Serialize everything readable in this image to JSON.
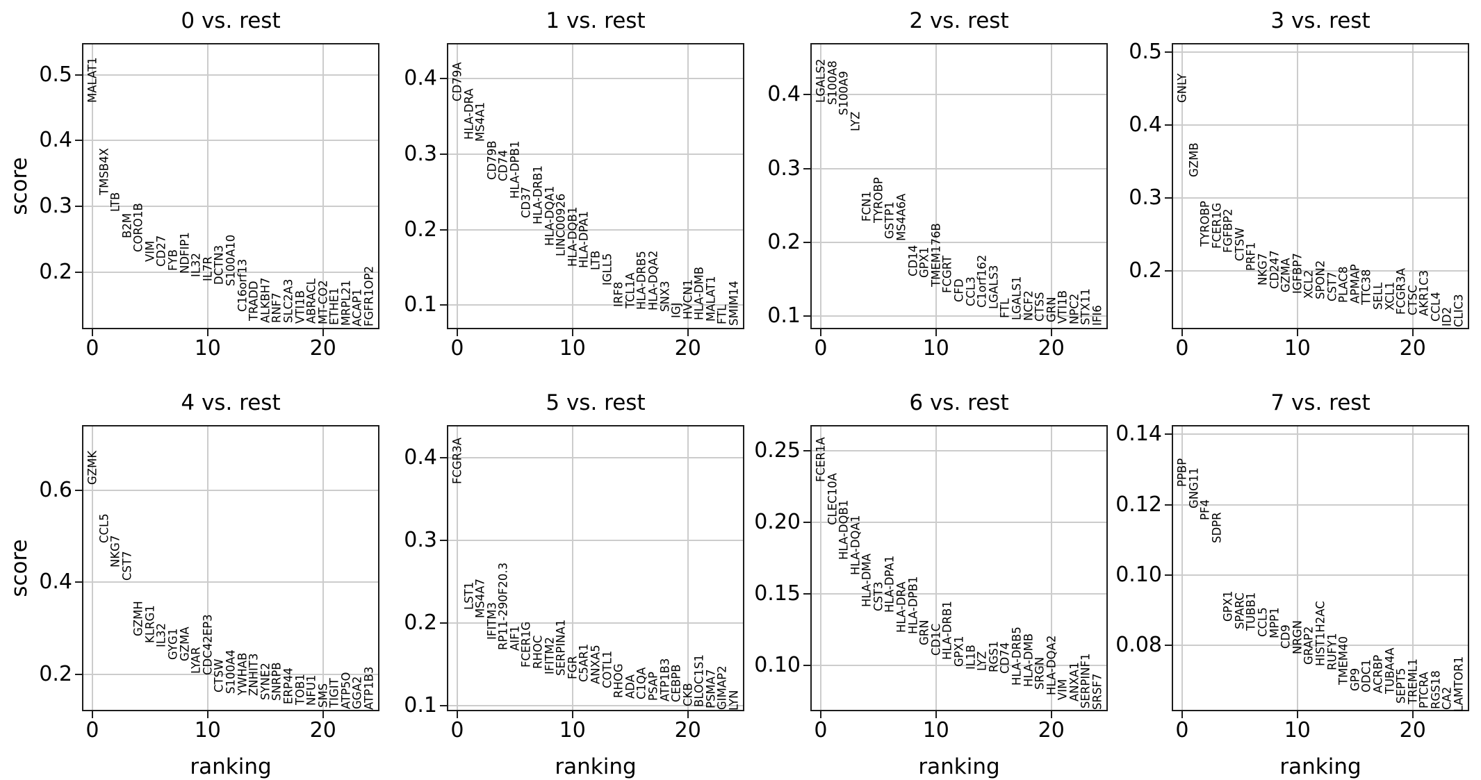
{
  "figure": {
    "background": "#ffffff",
    "text_color": "#000000",
    "grid_color": "#cccccc",
    "spine_color": "#1c1c1c"
  },
  "axes_shared": {
    "xlabel": "ranking",
    "ylabel": "score",
    "xlim": [
      -0.9,
      24.9
    ],
    "x_tick_values": [
      0,
      10,
      20
    ],
    "x_tick_labels": [
      "0",
      "10",
      "20"
    ]
  },
  "chart_data": [
    {
      "type": "scatter",
      "title": "0 vs. rest",
      "ylabel": "score",
      "xlabel": "",
      "ylim": [
        0.114,
        0.548
      ],
      "y_tick_values": [
        0.2,
        0.3,
        0.4,
        0.5
      ],
      "y_tick_labels": [
        "0.2",
        "0.3",
        "0.4",
        "0.5"
      ],
      "genes": [
        "MALAT1",
        "TMSB4X",
        "LTB",
        "B2M",
        "CORO1B",
        "VIM",
        "CD27",
        "FYB",
        "NDFIP1",
        "IL32",
        "IL7R",
        "DCTN3",
        "S100A10",
        "C16orf13",
        "TRADD",
        "ALKBH7",
        "RNF7",
        "SLC2A3",
        "VTI1B",
        "ABRACL",
        "MT-CO2",
        "ETHE1",
        "MRPL21",
        "ACAP1",
        "FGFR1OP2"
      ],
      "scores": [
        0.457,
        0.317,
        0.292,
        0.252,
        0.231,
        0.216,
        0.209,
        0.203,
        0.198,
        0.193,
        0.187,
        0.181,
        0.179,
        0.14,
        0.127,
        0.124,
        0.123,
        0.123,
        0.122,
        0.122,
        0.121,
        0.12,
        0.119,
        0.118,
        0.118
      ]
    },
    {
      "type": "scatter",
      "title": "1 vs. rest",
      "ylabel": "",
      "xlabel": "",
      "ylim": [
        0.068,
        0.447
      ],
      "y_tick_values": [
        0.1,
        0.2,
        0.3,
        0.4
      ],
      "y_tick_labels": [
        "0.1",
        "0.2",
        "0.3",
        "0.4"
      ],
      "genes": [
        "CD79A",
        "HLA-DRA",
        "MS4A1",
        "CD79B",
        "CD74",
        "HLA-DPB1",
        "CD37",
        "HLA-DRB1",
        "HLA-DQA1",
        "LINC00926",
        "HLA-DQB1",
        "HLA-DPA1",
        "LTB",
        "IGLL5",
        "IRF8",
        "TCL1A",
        "HLA-DRB5",
        "HLA-DQA2",
        "SNX3",
        "IGJ",
        "HVCN1",
        "HLA-DMB",
        "MALAT1",
        "FTL",
        "SMIM14"
      ],
      "scores": [
        0.37,
        0.319,
        0.316,
        0.266,
        0.264,
        0.241,
        0.215,
        0.207,
        0.178,
        0.165,
        0.151,
        0.149,
        0.146,
        0.126,
        0.097,
        0.096,
        0.094,
        0.093,
        0.091,
        0.083,
        0.081,
        0.08,
        0.078,
        0.074,
        0.073
      ]
    },
    {
      "type": "scatter",
      "title": "2 vs. rest",
      "ylabel": "",
      "xlabel": "",
      "ylim": [
        0.082,
        0.47
      ],
      "y_tick_values": [
        0.1,
        0.2,
        0.3,
        0.4
      ],
      "y_tick_labels": [
        "0.1",
        "0.2",
        "0.3",
        "0.4"
      ],
      "genes": [
        "LGALS2",
        "S100A8",
        "S100A9",
        "LYZ",
        "FCN1",
        "TYROBP",
        "GSTP1",
        "MS4A6A",
        "CD14",
        "GPX1",
        "TMEM176B",
        "FCGRT",
        "CFD",
        "CCL3",
        "C1orf162",
        "LGALS3",
        "FTL",
        "LGALS1",
        "NCF2",
        "CTSS",
        "GRN",
        "VTI1B",
        "NPC2",
        "STX11",
        "IFI6"
      ],
      "scores": [
        0.389,
        0.386,
        0.372,
        0.35,
        0.228,
        0.226,
        0.204,
        0.202,
        0.154,
        0.152,
        0.139,
        0.131,
        0.119,
        0.113,
        0.111,
        0.109,
        0.097,
        0.094,
        0.093,
        0.092,
        0.091,
        0.09,
        0.089,
        0.088,
        0.087
      ]
    },
    {
      "type": "scatter",
      "title": "3 vs. rest",
      "ylabel": "",
      "xlabel": "",
      "ylim": [
        0.12,
        0.512
      ],
      "y_tick_values": [
        0.2,
        0.3,
        0.4,
        0.5
      ],
      "y_tick_labels": [
        "0.2",
        "0.3",
        "0.4",
        "0.5"
      ],
      "genes": [
        "GNLY",
        "GZMB",
        "TYROBP",
        "FCER1G",
        "FGFBP2",
        "CTSW",
        "PRF1",
        "NKG7",
        "CD247",
        "GZMA",
        "IGFBP7",
        "XCL2",
        "SPON2",
        "CST7",
        "PLAC8",
        "APMAP",
        "TTC38",
        "SELL",
        "XCL1",
        "FCGR3A",
        "CTSC",
        "AKR1C3",
        "CCL4",
        "ID2",
        "CLIC3"
      ],
      "scores": [
        0.43,
        0.328,
        0.233,
        0.23,
        0.225,
        0.213,
        0.2,
        0.18,
        0.175,
        0.17,
        0.169,
        0.162,
        0.161,
        0.158,
        0.156,
        0.155,
        0.153,
        0.147,
        0.146,
        0.14,
        0.139,
        0.138,
        0.13,
        0.124,
        0.123
      ]
    },
    {
      "type": "scatter",
      "title": "4 vs. rest",
      "ylabel": "score",
      "xlabel": "ranking",
      "ylim": [
        0.12,
        0.741
      ],
      "y_tick_values": [
        0.2,
        0.4,
        0.6
      ],
      "y_tick_labels": [
        "0.2",
        "0.4",
        "0.6"
      ],
      "genes": [
        "GZMK",
        "CCL5",
        "NKG7",
        "CST7",
        "GZMH",
        "KLRG1",
        "IL32",
        "GYG1",
        "GZMA",
        "LYAR",
        "CDC42EP3",
        "CTSW",
        "S100A4",
        "YWHAB",
        "ZNHIT3",
        "SYNE2",
        "SNRPB",
        "ERP44",
        "TOB1",
        "NFU1",
        "SMS",
        "TIGIT",
        "ATP5O",
        "GGA2",
        "ATP1B3"
      ],
      "scores": [
        0.611,
        0.485,
        0.432,
        0.404,
        0.283,
        0.268,
        0.258,
        0.231,
        0.228,
        0.201,
        0.199,
        0.16,
        0.157,
        0.155,
        0.153,
        0.144,
        0.143,
        0.135,
        0.134,
        0.132,
        0.128,
        0.127,
        0.125,
        0.124,
        0.123
      ]
    },
    {
      "type": "scatter",
      "title": "5 vs. rest",
      "ylabel": "",
      "xlabel": "ranking",
      "ylim": [
        0.093,
        0.44
      ],
      "y_tick_values": [
        0.1,
        0.2,
        0.3,
        0.4
      ],
      "y_tick_labels": [
        "0.1",
        "0.2",
        "0.3",
        "0.4"
      ],
      "genes": [
        "FCGR3A",
        "LST1",
        "MS4A7",
        "IFITM3",
        "RP11-290F20.3",
        "AIF1",
        "FCER1G",
        "RHOC",
        "IFITM2",
        "SERPINA1",
        "FGR",
        "C5AR1",
        "ANXA5",
        "COTL1",
        "RHOG",
        "ADA",
        "C1QA",
        "PSAP",
        "ATP1B3",
        "CEBPB",
        "CKB",
        "BLOC1S1",
        "PSMA7",
        "GIMAP2",
        "LYN"
      ],
      "scores": [
        0.368,
        0.216,
        0.206,
        0.18,
        0.167,
        0.166,
        0.146,
        0.144,
        0.138,
        0.136,
        0.132,
        0.128,
        0.126,
        0.121,
        0.109,
        0.108,
        0.107,
        0.106,
        0.105,
        0.104,
        0.099,
        0.098,
        0.096,
        0.095,
        0.094
      ]
    },
    {
      "type": "scatter",
      "title": "6 vs. rest",
      "ylabel": "",
      "xlabel": "ranking",
      "ylim": [
        0.068,
        0.268
      ],
      "y_tick_values": [
        0.1,
        0.15,
        0.2,
        0.25
      ],
      "y_tick_labels": [
        "0.10",
        "0.15",
        "0.20",
        "0.25"
      ],
      "genes": [
        "FCER1A",
        "CLEC10A",
        "HLA-DQB1",
        "HLA-DQA1",
        "HLA-DMA",
        "CST3",
        "HLA-DPA1",
        "HLA-DRA",
        "HLA-DPB1",
        "GRN",
        "CD1C",
        "HLA-DRB1",
        "GPX1",
        "IL1B",
        "LYZ",
        "RGS1",
        "CD74",
        "HLA-DRB5",
        "HLA-DMB",
        "SRGN",
        "HLA-DQA2",
        "VIM",
        "ANXA1",
        "SERPINF1",
        "SRSF7"
      ],
      "scores": [
        0.228,
        0.198,
        0.174,
        0.163,
        0.141,
        0.138,
        0.137,
        0.123,
        0.122,
        0.114,
        0.107,
        0.104,
        0.099,
        0.097,
        0.096,
        0.095,
        0.094,
        0.086,
        0.085,
        0.083,
        0.079,
        0.076,
        0.075,
        0.07,
        0.069
      ]
    },
    {
      "type": "scatter",
      "title": "7 vs. rest",
      "ylabel": "",
      "xlabel": "ranking",
      "ylim": [
        0.0613,
        0.1426
      ],
      "y_tick_values": [
        0.08,
        0.1,
        0.12,
        0.14
      ],
      "y_tick_labels": [
        "0.08",
        "0.10",
        "0.12",
        "0.14"
      ],
      "genes": [
        "PPBP",
        "GNG11",
        "PF4",
        "SDPR",
        "GPX1",
        "SPARC",
        "TUBB1",
        "CCL5",
        "MPP1",
        "CD9",
        "NRGN",
        "GRAP2",
        "HIST1H2AC",
        "RUFY1",
        "TMEM40",
        "GP9",
        "ODC1",
        "ACRBP",
        "TUBA4A",
        "SEPT5",
        "TREML1",
        "PTCRA",
        "RGS18",
        "CA2",
        "LAMTOR1"
      ],
      "scores": [
        0.125,
        0.119,
        0.1155,
        0.109,
        0.0868,
        0.0845,
        0.0842,
        0.0824,
        0.082,
        0.079,
        0.0774,
        0.0745,
        0.0742,
        0.073,
        0.0688,
        0.067,
        0.0667,
        0.0664,
        0.0662,
        0.0634,
        0.0632,
        0.0621,
        0.0619,
        0.0617,
        0.0612
      ]
    }
  ]
}
